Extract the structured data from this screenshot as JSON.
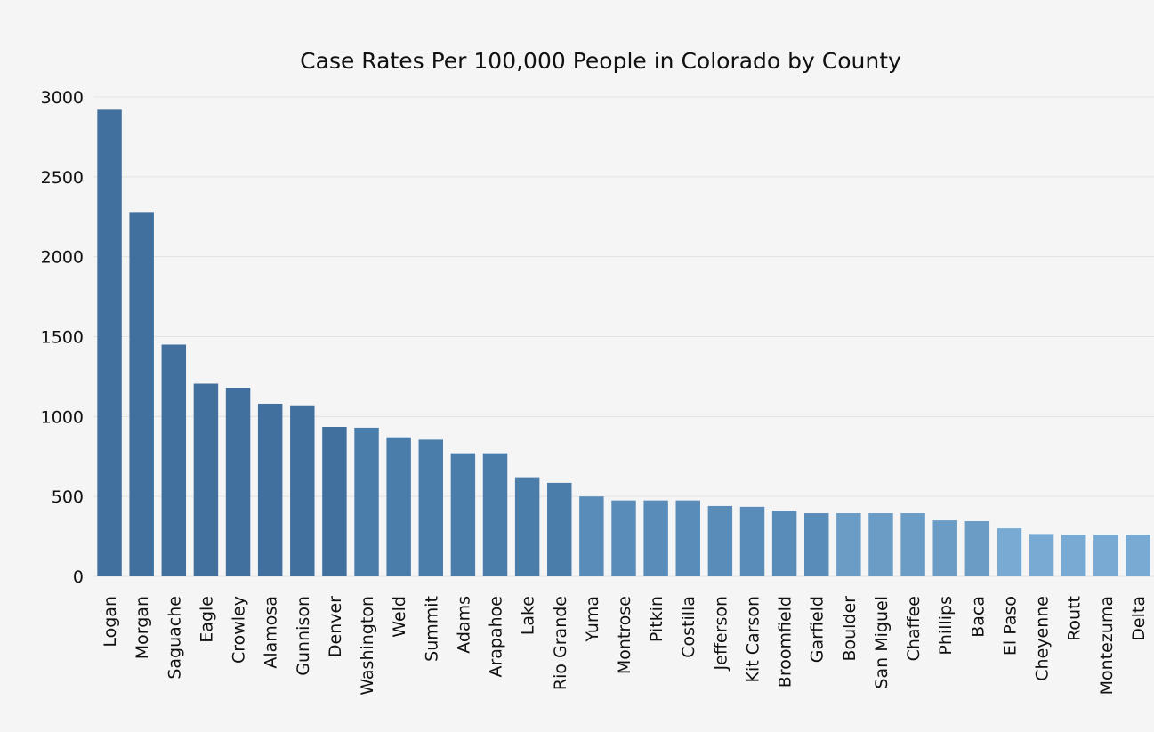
{
  "chart_data": {
    "type": "bar",
    "title": "Case Rates Per 100,000 People in Colorado by County",
    "xlabel": "",
    "ylabel": "",
    "ylim": [
      0,
      3000
    ],
    "yticks": [
      0,
      500,
      1000,
      1500,
      2000,
      2500,
      3000
    ],
    "grid": true,
    "categories": [
      "Logan",
      "Morgan",
      "Saguache",
      "Eagle",
      "Crowley",
      "Alamosa",
      "Gunnison",
      "Denver",
      "Washington",
      "Weld",
      "Summit",
      "Adams",
      "Arapahoe",
      "Lake",
      "Rio Grande",
      "Yuma",
      "Montrose",
      "Pitkin",
      "Costilla",
      "Jefferson",
      "Kit Carson",
      "Broomfield",
      "Garfield",
      "Boulder",
      "San Miguel",
      "Chaffee",
      "Phillips",
      "Baca",
      "El Paso",
      "Cheyenne",
      "Routt",
      "Montezuma",
      "Delta"
    ],
    "values": [
      2920,
      2280,
      1450,
      1205,
      1180,
      1080,
      1070,
      935,
      930,
      870,
      855,
      770,
      770,
      620,
      585,
      500,
      475,
      475,
      475,
      440,
      435,
      410,
      395,
      395,
      395,
      395,
      350,
      345,
      300,
      265,
      260,
      260,
      260
    ],
    "colors": [
      "#41709e",
      "#41709e",
      "#41709e",
      "#41709e",
      "#41709e",
      "#41709e",
      "#41709e",
      "#41709e",
      "#4b7daa",
      "#4b7daa",
      "#4b7daa",
      "#4b7daa",
      "#4b7daa",
      "#4b7daa",
      "#4b7daa",
      "#5a8cb9",
      "#5a8cb9",
      "#5a8cb9",
      "#5a8cb9",
      "#5a8cb9",
      "#5a8cb9",
      "#5a8cb9",
      "#5a8cb9",
      "#6a9cc6",
      "#6a9cc6",
      "#6a9cc6",
      "#6a9cc6",
      "#6a9cc6",
      "#78aad3",
      "#78aad3",
      "#78aad3",
      "#78aad3",
      "#78aad3"
    ]
  }
}
